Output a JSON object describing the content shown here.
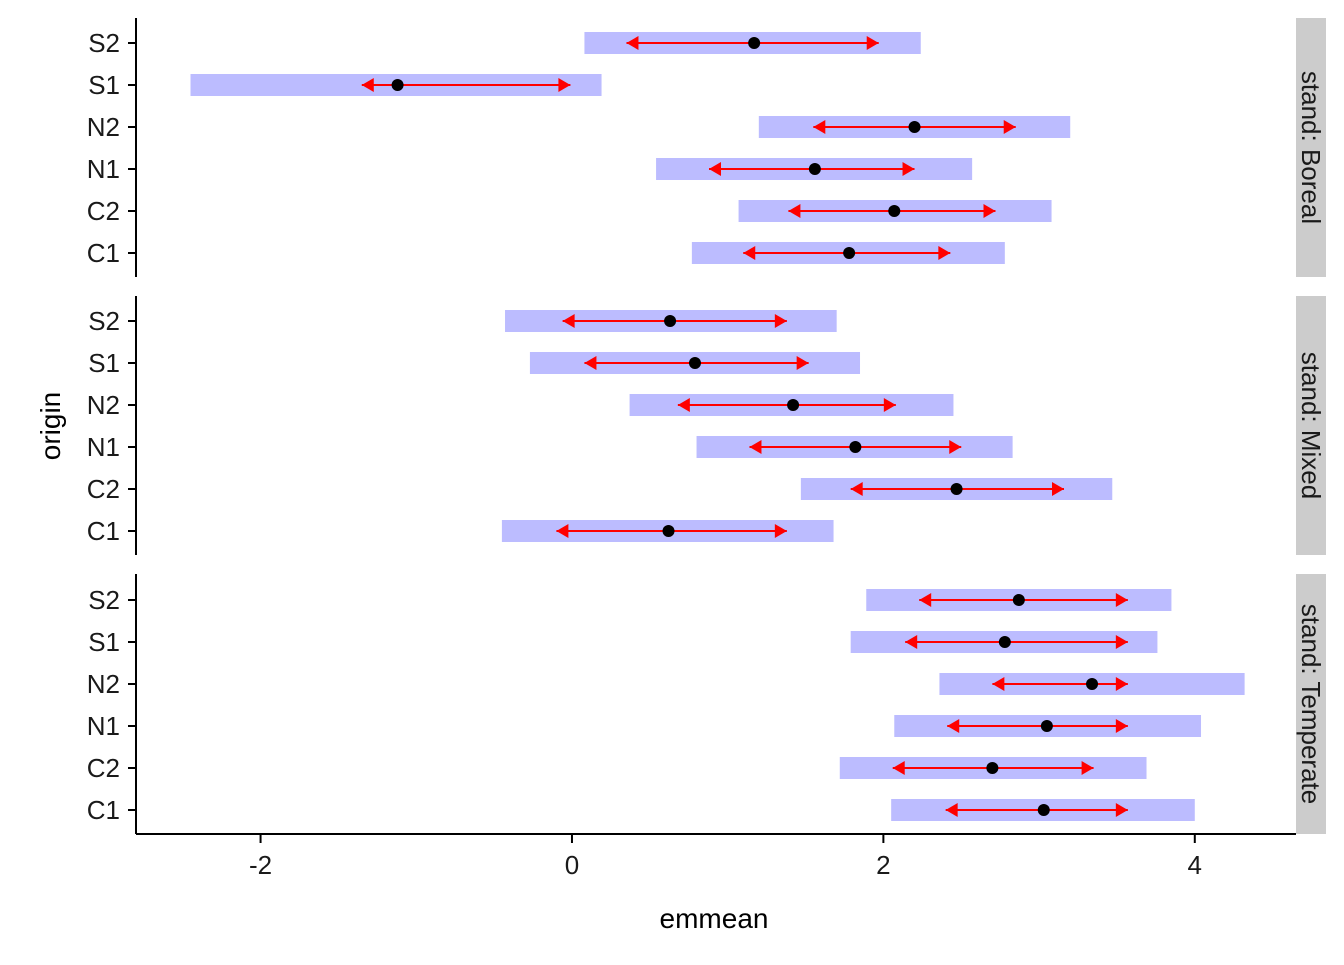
{
  "chart_data": {
    "type": "interval",
    "xlabel": "emmean",
    "ylabel": "origin",
    "xlim": [
      -2.8,
      4.65
    ],
    "x_ticks": [
      -2,
      0,
      2,
      4
    ],
    "categories": [
      "C1",
      "C2",
      "N1",
      "N2",
      "S1",
      "S2"
    ],
    "facet_prefix": "stand: ",
    "colors": {
      "ci_band": "#bcbcff",
      "comparison_arrow": "#ff0000",
      "point": "#000000",
      "strip_bg": "#cccccc",
      "axis": "#000000"
    },
    "panels": [
      {
        "stand": "Boreal",
        "strip_label": "stand: Boreal",
        "rows": [
          {
            "origin": "S2",
            "emmean": 1.17,
            "ci_low": 0.08,
            "ci_high": 2.24,
            "arrow_low": 0.35,
            "arrow_high": 1.97
          },
          {
            "origin": "S1",
            "emmean": -1.12,
            "ci_low": -2.45,
            "ci_high": 0.19,
            "arrow_low": -1.35,
            "arrow_high": -0.01
          },
          {
            "origin": "N2",
            "emmean": 2.2,
            "ci_low": 1.2,
            "ci_high": 3.2,
            "arrow_low": 1.55,
            "arrow_high": 2.85
          },
          {
            "origin": "N1",
            "emmean": 1.56,
            "ci_low": 0.54,
            "ci_high": 2.57,
            "arrow_low": 0.88,
            "arrow_high": 2.2
          },
          {
            "origin": "C2",
            "emmean": 2.07,
            "ci_low": 1.07,
            "ci_high": 3.08,
            "arrow_low": 1.39,
            "arrow_high": 2.72
          },
          {
            "origin": "C1",
            "emmean": 1.78,
            "ci_low": 0.77,
            "ci_high": 2.78,
            "arrow_low": 1.1,
            "arrow_high": 2.43
          }
        ]
      },
      {
        "stand": "Mixed",
        "strip_label": "stand: Mixed",
        "rows": [
          {
            "origin": "S2",
            "emmean": 0.63,
            "ci_low": -0.43,
            "ci_high": 1.7,
            "arrow_low": -0.06,
            "arrow_high": 1.38
          },
          {
            "origin": "S1",
            "emmean": 0.79,
            "ci_low": -0.27,
            "ci_high": 1.85,
            "arrow_low": 0.08,
            "arrow_high": 1.52
          },
          {
            "origin": "N2",
            "emmean": 1.42,
            "ci_low": 0.37,
            "ci_high": 2.45,
            "arrow_low": 0.68,
            "arrow_high": 2.08
          },
          {
            "origin": "N1",
            "emmean": 1.82,
            "ci_low": 0.8,
            "ci_high": 2.83,
            "arrow_low": 1.14,
            "arrow_high": 2.5
          },
          {
            "origin": "C2",
            "emmean": 2.47,
            "ci_low": 1.47,
            "ci_high": 3.47,
            "arrow_low": 1.79,
            "arrow_high": 3.16
          },
          {
            "origin": "C1",
            "emmean": 0.62,
            "ci_low": -0.45,
            "ci_high": 1.68,
            "arrow_low": -0.1,
            "arrow_high": 1.38
          }
        ]
      },
      {
        "stand": "Temperate",
        "strip_label": "stand: Temperate",
        "rows": [
          {
            "origin": "S2",
            "emmean": 2.87,
            "ci_low": 1.89,
            "ci_high": 3.85,
            "arrow_low": 2.23,
            "arrow_high": 3.57
          },
          {
            "origin": "S1",
            "emmean": 2.78,
            "ci_low": 1.79,
            "ci_high": 3.76,
            "arrow_low": 2.14,
            "arrow_high": 3.57
          },
          {
            "origin": "N2",
            "emmean": 3.34,
            "ci_low": 2.36,
            "ci_high": 4.32,
            "arrow_low": 2.7,
            "arrow_high": 3.57
          },
          {
            "origin": "N1",
            "emmean": 3.05,
            "ci_low": 2.07,
            "ci_high": 4.04,
            "arrow_low": 2.41,
            "arrow_high": 3.57
          },
          {
            "origin": "C2",
            "emmean": 2.7,
            "ci_low": 1.72,
            "ci_high": 3.69,
            "arrow_low": 2.06,
            "arrow_high": 3.35
          },
          {
            "origin": "C1",
            "emmean": 3.03,
            "ci_low": 2.05,
            "ci_high": 4.0,
            "arrow_low": 2.4,
            "arrow_high": 3.57
          }
        ]
      }
    ]
  }
}
